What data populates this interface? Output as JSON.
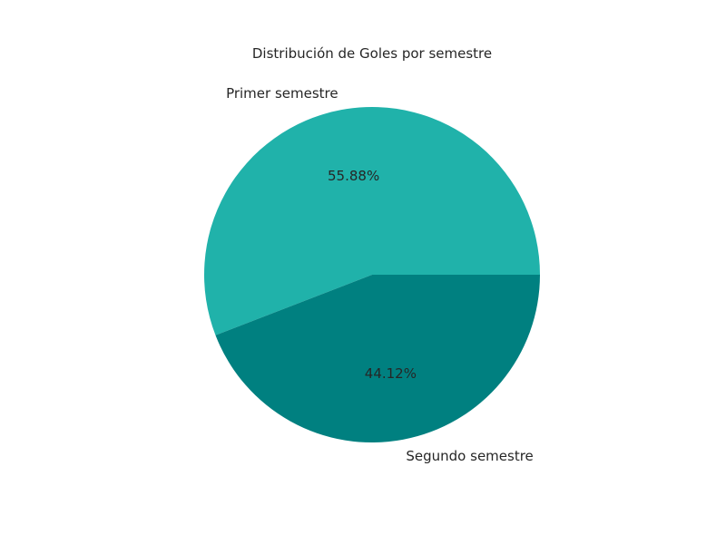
{
  "chart_data": {
    "type": "pie",
    "title": "Distribución de Goles por semestre",
    "labels": [
      "Primer semestre",
      "Segundo semestre"
    ],
    "values": [
      55.88,
      44.12
    ],
    "value_labels": [
      "55.88%",
      "44.12%"
    ],
    "colors": [
      "#20b2aa",
      "#008080"
    ],
    "start_angle_deg": 0,
    "direction": "counterclockwise",
    "legend": "none"
  }
}
